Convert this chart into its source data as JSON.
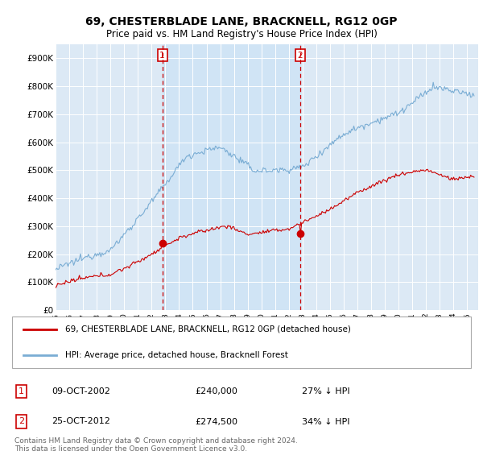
{
  "title": "69, CHESTERBLADE LANE, BRACKNELL, RG12 0GP",
  "subtitle": "Price paid vs. HM Land Registry's House Price Index (HPI)",
  "background_color": "#dce9f5",
  "red_line_label": "69, CHESTERBLADE LANE, BRACKNELL, RG12 0GP (detached house)",
  "blue_line_label": "HPI: Average price, detached house, Bracknell Forest",
  "transaction1_date": "09-OCT-2002",
  "transaction1_price": "£240,000",
  "transaction1_hpi": "27% ↓ HPI",
  "transaction1_year": 2002.78,
  "transaction1_value": 240000,
  "transaction2_date": "25-OCT-2012",
  "transaction2_price": "£274,500",
  "transaction2_hpi": "34% ↓ HPI",
  "transaction2_year": 2012.82,
  "transaction2_value": 274500,
  "footer": "Contains HM Land Registry data © Crown copyright and database right 2024.\nThis data is licensed under the Open Government Licence v3.0.",
  "yticks": [
    0,
    100000,
    200000,
    300000,
    400000,
    500000,
    600000,
    700000,
    800000,
    900000
  ],
  "ytick_labels": [
    "£0",
    "£100K",
    "£200K",
    "£300K",
    "£400K",
    "£500K",
    "£600K",
    "£700K",
    "£800K",
    "£900K"
  ],
  "red_color": "#cc0000",
  "blue_color": "#7aadd4",
  "vline_color": "#cc0000",
  "grid_color": "#cccccc",
  "shade_color": "#d0e4f5",
  "legend_border_color": "#aaaaaa",
  "note_box_color": "#cc0000",
  "footer_color": "#666666"
}
